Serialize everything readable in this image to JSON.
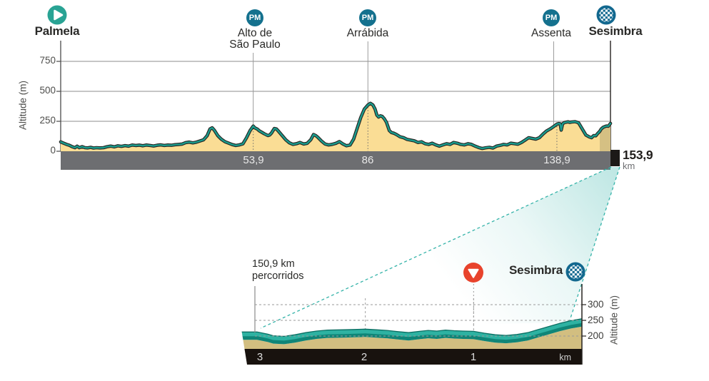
{
  "colors": {
    "teal_line": "#1a9c8d",
    "profile_fill": "#fadd95",
    "final_km_fill": "#d5c083",
    "outline": "#26221f",
    "km_bar": "#6d6e71",
    "pm_blue": "#14718e",
    "start_green": "#29a394",
    "finish_blue": "#12688f",
    "flamme_rouge_red": "#e8432c",
    "band_teal_top": "#2eb2a2",
    "band_teal_front": "#108577",
    "band_tan": "#d2be80",
    "band_black": "#18120e",
    "beam_teal": "#35b3a9"
  },
  "chart_data": [
    {
      "id": "stage-profile",
      "type": "area",
      "xlabel": "km",
      "ylabel": "Altitude (m)",
      "xlim": [
        0,
        153.9
      ],
      "ylim": [
        0,
        800
      ],
      "grid": "horizontal",
      "yticks": [
        0,
        250,
        500,
        750
      ],
      "ytick_labels": [
        "0",
        "250",
        "500",
        "750"
      ],
      "xticks": [
        53.9,
        86,
        138.9
      ],
      "xtick_labels": [
        "53,9",
        "86",
        "138,9"
      ],
      "total_distance_km": 153.9,
      "total_distance_label": "153,9",
      "total_distance_unit": "km",
      "final_highlight_from_km": 150.9,
      "waypoints": [
        {
          "name": "Palmela",
          "km": 0,
          "type": "start"
        },
        {
          "name": "Alto de\nSão Paulo",
          "km": 53.9,
          "type": "mountain_pass",
          "badge": "PM"
        },
        {
          "name": "Arrábida",
          "km": 86,
          "type": "mountain_pass",
          "badge": "PM"
        },
        {
          "name": "Assenta",
          "km": 138,
          "type": "mountain_pass",
          "badge": "PM"
        },
        {
          "name": "Sesimbra",
          "km": 153.9,
          "type": "finish"
        }
      ],
      "profile_km_m": [
        [
          0,
          78
        ],
        [
          0.8,
          68
        ],
        [
          1.6,
          58
        ],
        [
          2.4,
          50
        ],
        [
          3.2,
          38
        ],
        [
          4,
          30
        ],
        [
          4.6,
          42
        ],
        [
          5.2,
          30
        ],
        [
          6,
          38
        ],
        [
          6.8,
          30
        ],
        [
          7.6,
          28
        ],
        [
          8.4,
          33
        ],
        [
          9.2,
          27
        ],
        [
          10,
          30
        ],
        [
          11,
          28
        ],
        [
          12,
          30
        ],
        [
          13,
          38
        ],
        [
          14,
          43
        ],
        [
          15,
          37
        ],
        [
          16,
          45
        ],
        [
          17,
          41
        ],
        [
          18,
          47
        ],
        [
          19,
          43
        ],
        [
          20,
          52
        ],
        [
          21,
          48
        ],
        [
          22,
          51
        ],
        [
          23,
          46
        ],
        [
          24,
          52
        ],
        [
          25,
          48
        ],
        [
          26,
          44
        ],
        [
          27,
          50
        ],
        [
          28,
          53
        ],
        [
          29,
          48
        ],
        [
          30,
          52
        ],
        [
          31,
          50
        ],
        [
          32,
          55
        ],
        [
          33,
          57
        ],
        [
          34,
          60
        ],
        [
          35,
          72
        ],
        [
          36,
          76
        ],
        [
          37,
          70
        ],
        [
          38,
          76
        ],
        [
          39,
          86
        ],
        [
          40,
          96
        ],
        [
          41,
          130
        ],
        [
          41.8,
          186
        ],
        [
          42.4,
          196
        ],
        [
          43,
          176
        ],
        [
          44,
          130
        ],
        [
          45,
          100
        ],
        [
          46,
          80
        ],
        [
          47,
          68
        ],
        [
          48,
          56
        ],
        [
          49,
          48
        ],
        [
          50,
          53
        ],
        [
          51,
          62
        ],
        [
          52,
          112
        ],
        [
          53,
          172
        ],
        [
          53.9,
          210
        ],
        [
          54.3,
          196
        ],
        [
          55,
          186
        ],
        [
          55.6,
          170
        ],
        [
          56.2,
          160
        ],
        [
          57,
          146
        ],
        [
          58,
          131
        ],
        [
          58.5,
          136
        ],
        [
          59,
          152
        ],
        [
          59.8,
          190
        ],
        [
          60.4,
          186
        ],
        [
          61,
          166
        ],
        [
          62,
          131
        ],
        [
          63,
          96
        ],
        [
          64,
          71
        ],
        [
          65,
          58
        ],
        [
          66,
          63
        ],
        [
          67,
          73
        ],
        [
          68,
          61
        ],
        [
          69,
          66
        ],
        [
          70,
          96
        ],
        [
          70.8,
          140
        ],
        [
          71.4,
          131
        ],
        [
          72,
          116
        ],
        [
          73,
          86
        ],
        [
          74,
          61
        ],
        [
          75,
          53
        ],
        [
          76,
          58
        ],
        [
          77,
          66
        ],
        [
          78,
          81
        ],
        [
          79,
          61
        ],
        [
          80,
          46
        ],
        [
          81,
          52
        ],
        [
          82,
          102
        ],
        [
          83,
          192
        ],
        [
          84,
          282
        ],
        [
          85,
          352
        ],
        [
          86,
          386
        ],
        [
          86.7,
          400
        ],
        [
          87.4,
          386
        ],
        [
          88,
          352
        ],
        [
          88.5,
          302
        ],
        [
          89,
          286
        ],
        [
          89.5,
          296
        ],
        [
          90,
          291
        ],
        [
          90.6,
          271
        ],
        [
          91.2,
          241
        ],
        [
          92,
          172
        ],
        [
          92.6,
          156
        ],
        [
          93.2,
          151
        ],
        [
          94,
          139
        ],
        [
          95,
          121
        ],
        [
          96,
          113
        ],
        [
          97,
          99
        ],
        [
          98,
          93
        ],
        [
          99,
          87
        ],
        [
          100,
          73
        ],
        [
          101,
          79
        ],
        [
          102,
          63
        ],
        [
          103,
          57
        ],
        [
          104,
          67
        ],
        [
          105,
          53
        ],
        [
          106,
          43
        ],
        [
          107,
          53
        ],
        [
          108,
          63
        ],
        [
          109,
          57
        ],
        [
          110,
          73
        ],
        [
          111,
          67
        ],
        [
          112,
          57
        ],
        [
          113,
          53
        ],
        [
          114,
          63
        ],
        [
          115,
          57
        ],
        [
          116,
          43
        ],
        [
          117,
          31
        ],
        [
          118,
          23
        ],
        [
          119,
          29
        ],
        [
          120,
          33
        ],
        [
          121,
          27
        ],
        [
          122,
          43
        ],
        [
          123,
          49
        ],
        [
          124,
          57
        ],
        [
          125,
          53
        ],
        [
          126,
          67
        ],
        [
          127,
          63
        ],
        [
          128,
          59
        ],
        [
          129,
          73
        ],
        [
          130,
          93
        ],
        [
          131,
          113
        ],
        [
          132,
          107
        ],
        [
          133,
          101
        ],
        [
          134,
          113
        ],
        [
          135,
          143
        ],
        [
          136,
          169
        ],
        [
          137,
          186
        ],
        [
          138,
          206
        ],
        [
          138.9,
          226
        ],
        [
          139.4,
          231
        ],
        [
          139.8,
          229
        ],
        [
          140.1,
          176
        ],
        [
          140.5,
          229
        ],
        [
          141,
          239
        ],
        [
          142,
          246
        ],
        [
          142.5,
          241
        ],
        [
          143,
          244
        ],
        [
          144,
          247
        ],
        [
          144.6,
          241
        ],
        [
          145,
          236
        ],
        [
          146,
          186
        ],
        [
          147,
          136
        ],
        [
          148,
          119
        ],
        [
          148.6,
          113
        ],
        [
          149.2,
          131
        ],
        [
          149.8,
          129
        ],
        [
          150.4,
          151
        ],
        [
          150.9,
          166
        ],
        [
          151.3,
          186
        ],
        [
          151.8,
          199
        ],
        [
          152.3,
          206
        ],
        [
          152.8,
          211
        ],
        [
          153.3,
          209
        ],
        [
          153.9,
          232
        ]
      ]
    },
    {
      "id": "final-3km-detail",
      "type": "area",
      "ylabel": "Altitude (m)",
      "x_axis": "km_to_go",
      "xlim": [
        3,
        0
      ],
      "ylim": [
        190,
        320
      ],
      "yticks": [
        200,
        250,
        300
      ],
      "ytick_labels": [
        "200",
        "250",
        "300"
      ],
      "xticks": [
        3,
        2,
        1
      ],
      "xtick_labels": [
        "3",
        "2",
        "1"
      ],
      "x_unit_label": "km",
      "distance_covered_label": "150,9 km\npercorridos",
      "flamme_rouge_km_to_go": 1,
      "finish": {
        "name": "Sesimbra"
      },
      "profile_kmtogo_m": [
        [
          3.16,
          213
        ],
        [
          3.0,
          213
        ],
        [
          2.9,
          206
        ],
        [
          2.85,
          201
        ],
        [
          2.75,
          199
        ],
        [
          2.65,
          204
        ],
        [
          2.55,
          211
        ],
        [
          2.45,
          216
        ],
        [
          2.35,
          219
        ],
        [
          2.2,
          220
        ],
        [
          2.1,
          221
        ],
        [
          2.0,
          222
        ],
        [
          1.9,
          220
        ],
        [
          1.8,
          218
        ],
        [
          1.7,
          214
        ],
        [
          1.6,
          211
        ],
        [
          1.5,
          215
        ],
        [
          1.42,
          218
        ],
        [
          1.34,
          216
        ],
        [
          1.26,
          219
        ],
        [
          1.18,
          217
        ],
        [
          1.1,
          216
        ],
        [
          1.0,
          215
        ],
        [
          0.9,
          209
        ],
        [
          0.8,
          204
        ],
        [
          0.7,
          202
        ],
        [
          0.6,
          205
        ],
        [
          0.5,
          211
        ],
        [
          0.4,
          221
        ],
        [
          0.3,
          231
        ],
        [
          0.2,
          241
        ],
        [
          0.1,
          249
        ],
        [
          0,
          255
        ]
      ]
    }
  ]
}
